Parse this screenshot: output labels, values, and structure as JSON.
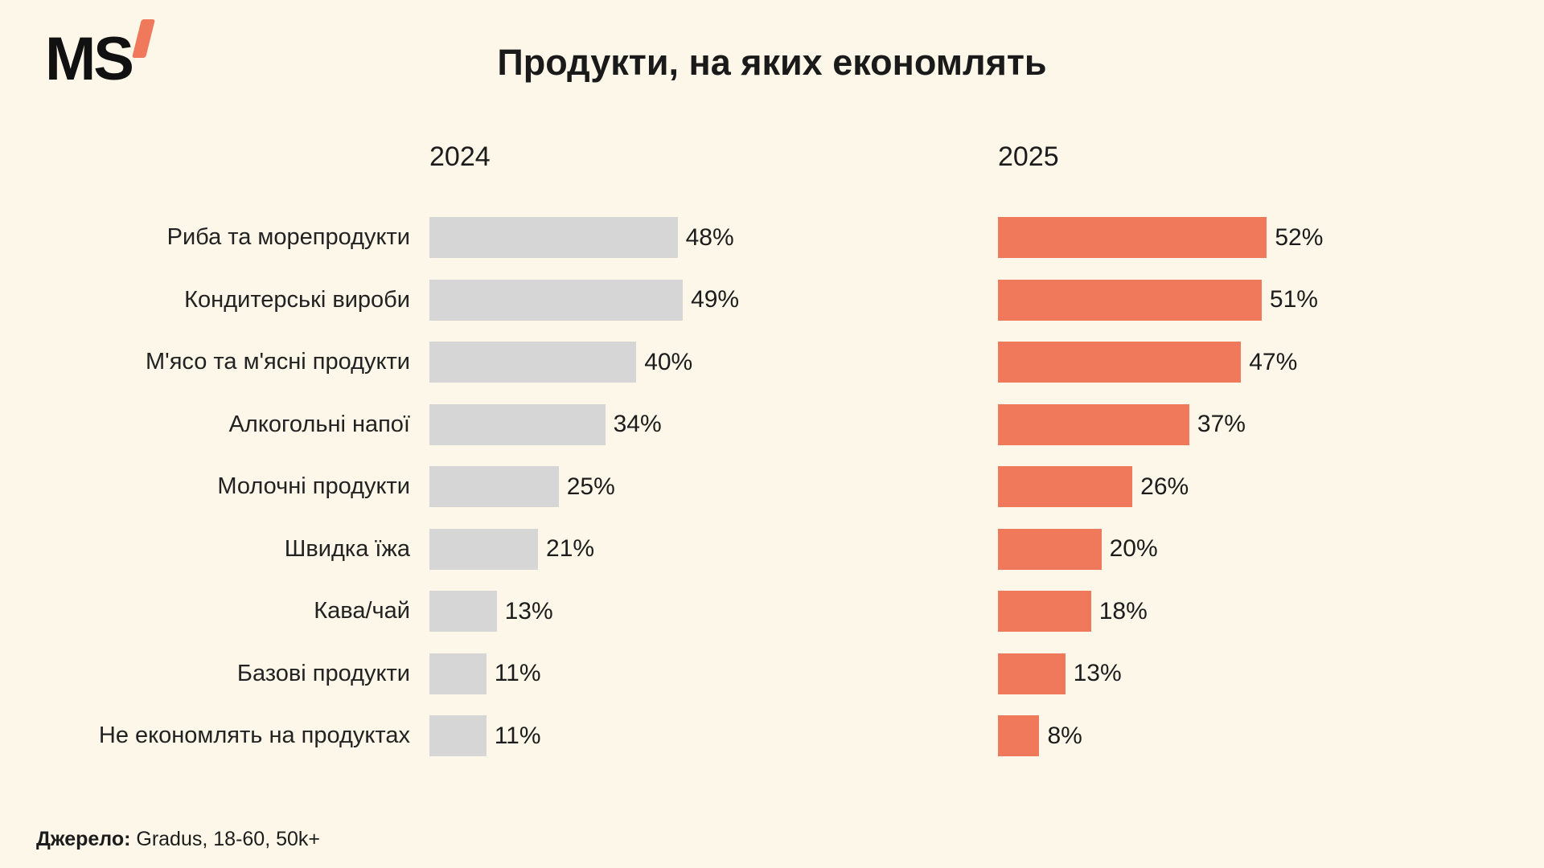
{
  "logo": {
    "text": "MS",
    "apostrophe_color": "#F0795B"
  },
  "title": "Продукти, на яких економлять",
  "chart_data": {
    "type": "bar",
    "orientation": "horizontal",
    "title": "Продукти, на яких економлять",
    "categories": [
      "Риба та морепродукти",
      "Кондитерські вироби",
      "М'ясо та м'ясні продукти",
      "Алкогольні напої",
      "Молочні продукти",
      "Швидка їжа",
      "Кава/чай",
      "Базові продукти",
      "Не економлять на продуктах"
    ],
    "series": [
      {
        "name": "2024",
        "color": "#D6D6D6",
        "values": [
          48,
          49,
          40,
          34,
          25,
          21,
          13,
          11,
          11
        ]
      },
      {
        "name": "2025",
        "color": "#F0795B",
        "values": [
          52,
          51,
          47,
          37,
          26,
          20,
          18,
          13,
          8
        ]
      }
    ],
    "value_suffix": "%",
    "xlim": [
      0,
      55
    ],
    "grid": false,
    "legend_position": "column-headers",
    "value_labels": "outside-right"
  },
  "footer": {
    "source_label": "Джерело:",
    "source_text": " Gradus, 18-60, 50k+"
  },
  "colors": {
    "background": "#FCF7E9",
    "bar_2024": "#D6D6D6",
    "bar_2025": "#F0795B",
    "text": "#1C1C1C"
  }
}
